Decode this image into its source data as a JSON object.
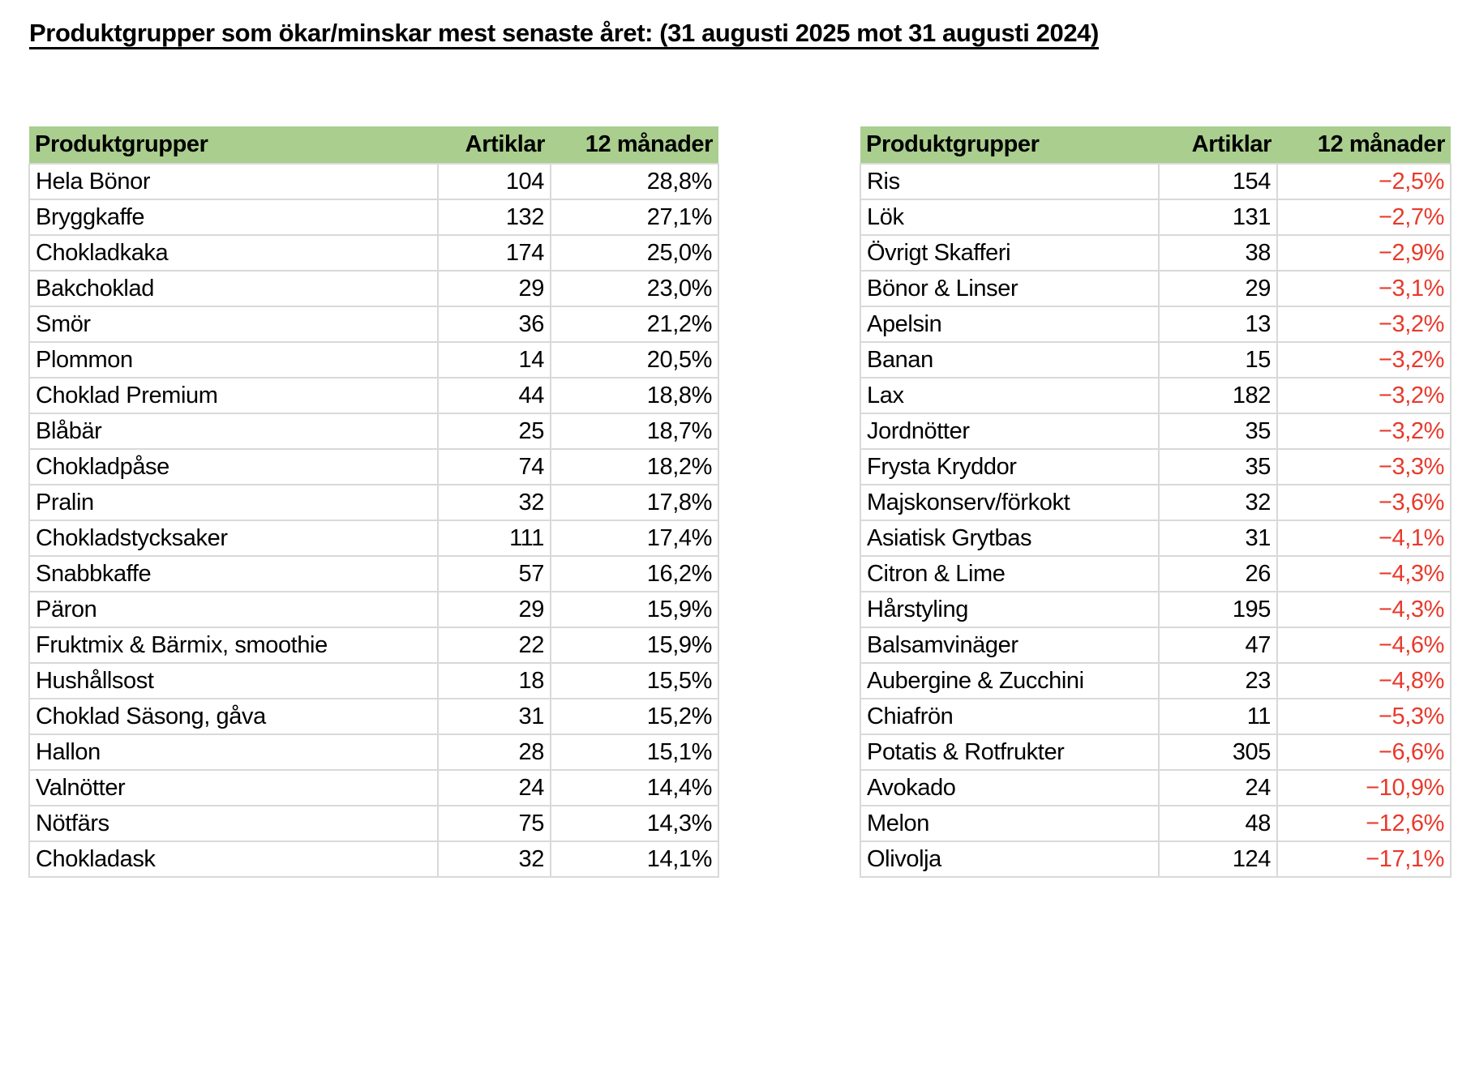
{
  "page": {
    "title": "Produktgrupper som ökar/minskar mest senaste året: (31 augusti 2025 mot 31 augusti 2024)"
  },
  "colors": {
    "header_bg": "#A9CE8E",
    "negative_text": "#E8392B",
    "grid_border": "#D9D9D9",
    "text_color": "#000000"
  },
  "tables": [
    {
      "name": "increasing",
      "columns": [
        "Produktgrupper",
        "Artiklar",
        "12 månader"
      ],
      "negative": false,
      "rows": [
        [
          "Hela Bönor",
          "104",
          "28,8%"
        ],
        [
          "Bryggkaffe",
          "132",
          "27,1%"
        ],
        [
          "Chokladkaka",
          "174",
          "25,0%"
        ],
        [
          "Bakchoklad",
          "29",
          "23,0%"
        ],
        [
          "Smör",
          "36",
          "21,2%"
        ],
        [
          "Plommon",
          "14",
          "20,5%"
        ],
        [
          "Choklad Premium",
          "44",
          "18,8%"
        ],
        [
          "Blåbär",
          "25",
          "18,7%"
        ],
        [
          "Chokladpåse",
          "74",
          "18,2%"
        ],
        [
          "Pralin",
          "32",
          "17,8%"
        ],
        [
          "Chokladstycksaker",
          "111",
          "17,4%"
        ],
        [
          "Snabbkaffe",
          "57",
          "16,2%"
        ],
        [
          "Päron",
          "29",
          "15,9%"
        ],
        [
          "Fruktmix & Bärmix, smoothie",
          "22",
          "15,9%"
        ],
        [
          "Hushållsost",
          "18",
          "15,5%"
        ],
        [
          "Choklad Säsong, gåva",
          "31",
          "15,2%"
        ],
        [
          "Hallon",
          "28",
          "15,1%"
        ],
        [
          "Valnötter",
          "24",
          "14,4%"
        ],
        [
          "Nötfärs",
          "75",
          "14,3%"
        ],
        [
          "Chokladask",
          "32",
          "14,1%"
        ]
      ]
    },
    {
      "name": "decreasing",
      "columns": [
        "Produktgrupper",
        "Artiklar",
        "12 månader"
      ],
      "negative": true,
      "rows": [
        [
          "Ris",
          "154",
          "−2,5%"
        ],
        [
          "Lök",
          "131",
          "−2,7%"
        ],
        [
          "Övrigt Skafferi",
          "38",
          "−2,9%"
        ],
        [
          "Bönor & Linser",
          "29",
          "−3,1%"
        ],
        [
          "Apelsin",
          "13",
          "−3,2%"
        ],
        [
          "Banan",
          "15",
          "−3,2%"
        ],
        [
          "Lax",
          "182",
          "−3,2%"
        ],
        [
          "Jordnötter",
          "35",
          "−3,2%"
        ],
        [
          "Frysta Kryddor",
          "35",
          "−3,3%"
        ],
        [
          "Majskonserv/förkokt",
          "32",
          "−3,6%"
        ],
        [
          "Asiatisk Grytbas",
          "31",
          "−4,1%"
        ],
        [
          "Citron & Lime",
          "26",
          "−4,3%"
        ],
        [
          "Hårstyling",
          "195",
          "−4,3%"
        ],
        [
          "Balsamvinäger",
          "47",
          "−4,6%"
        ],
        [
          "Aubergine & Zucchini",
          "23",
          "−4,8%"
        ],
        [
          "Chiafrön",
          "11",
          "−5,3%"
        ],
        [
          "Potatis & Rotfrukter",
          "305",
          "−6,6%"
        ],
        [
          "Avokado",
          "24",
          "−10,9%"
        ],
        [
          "Melon",
          "48",
          "−12,6%"
        ],
        [
          "Olivolja",
          "124",
          "−17,1%"
        ]
      ]
    }
  ]
}
